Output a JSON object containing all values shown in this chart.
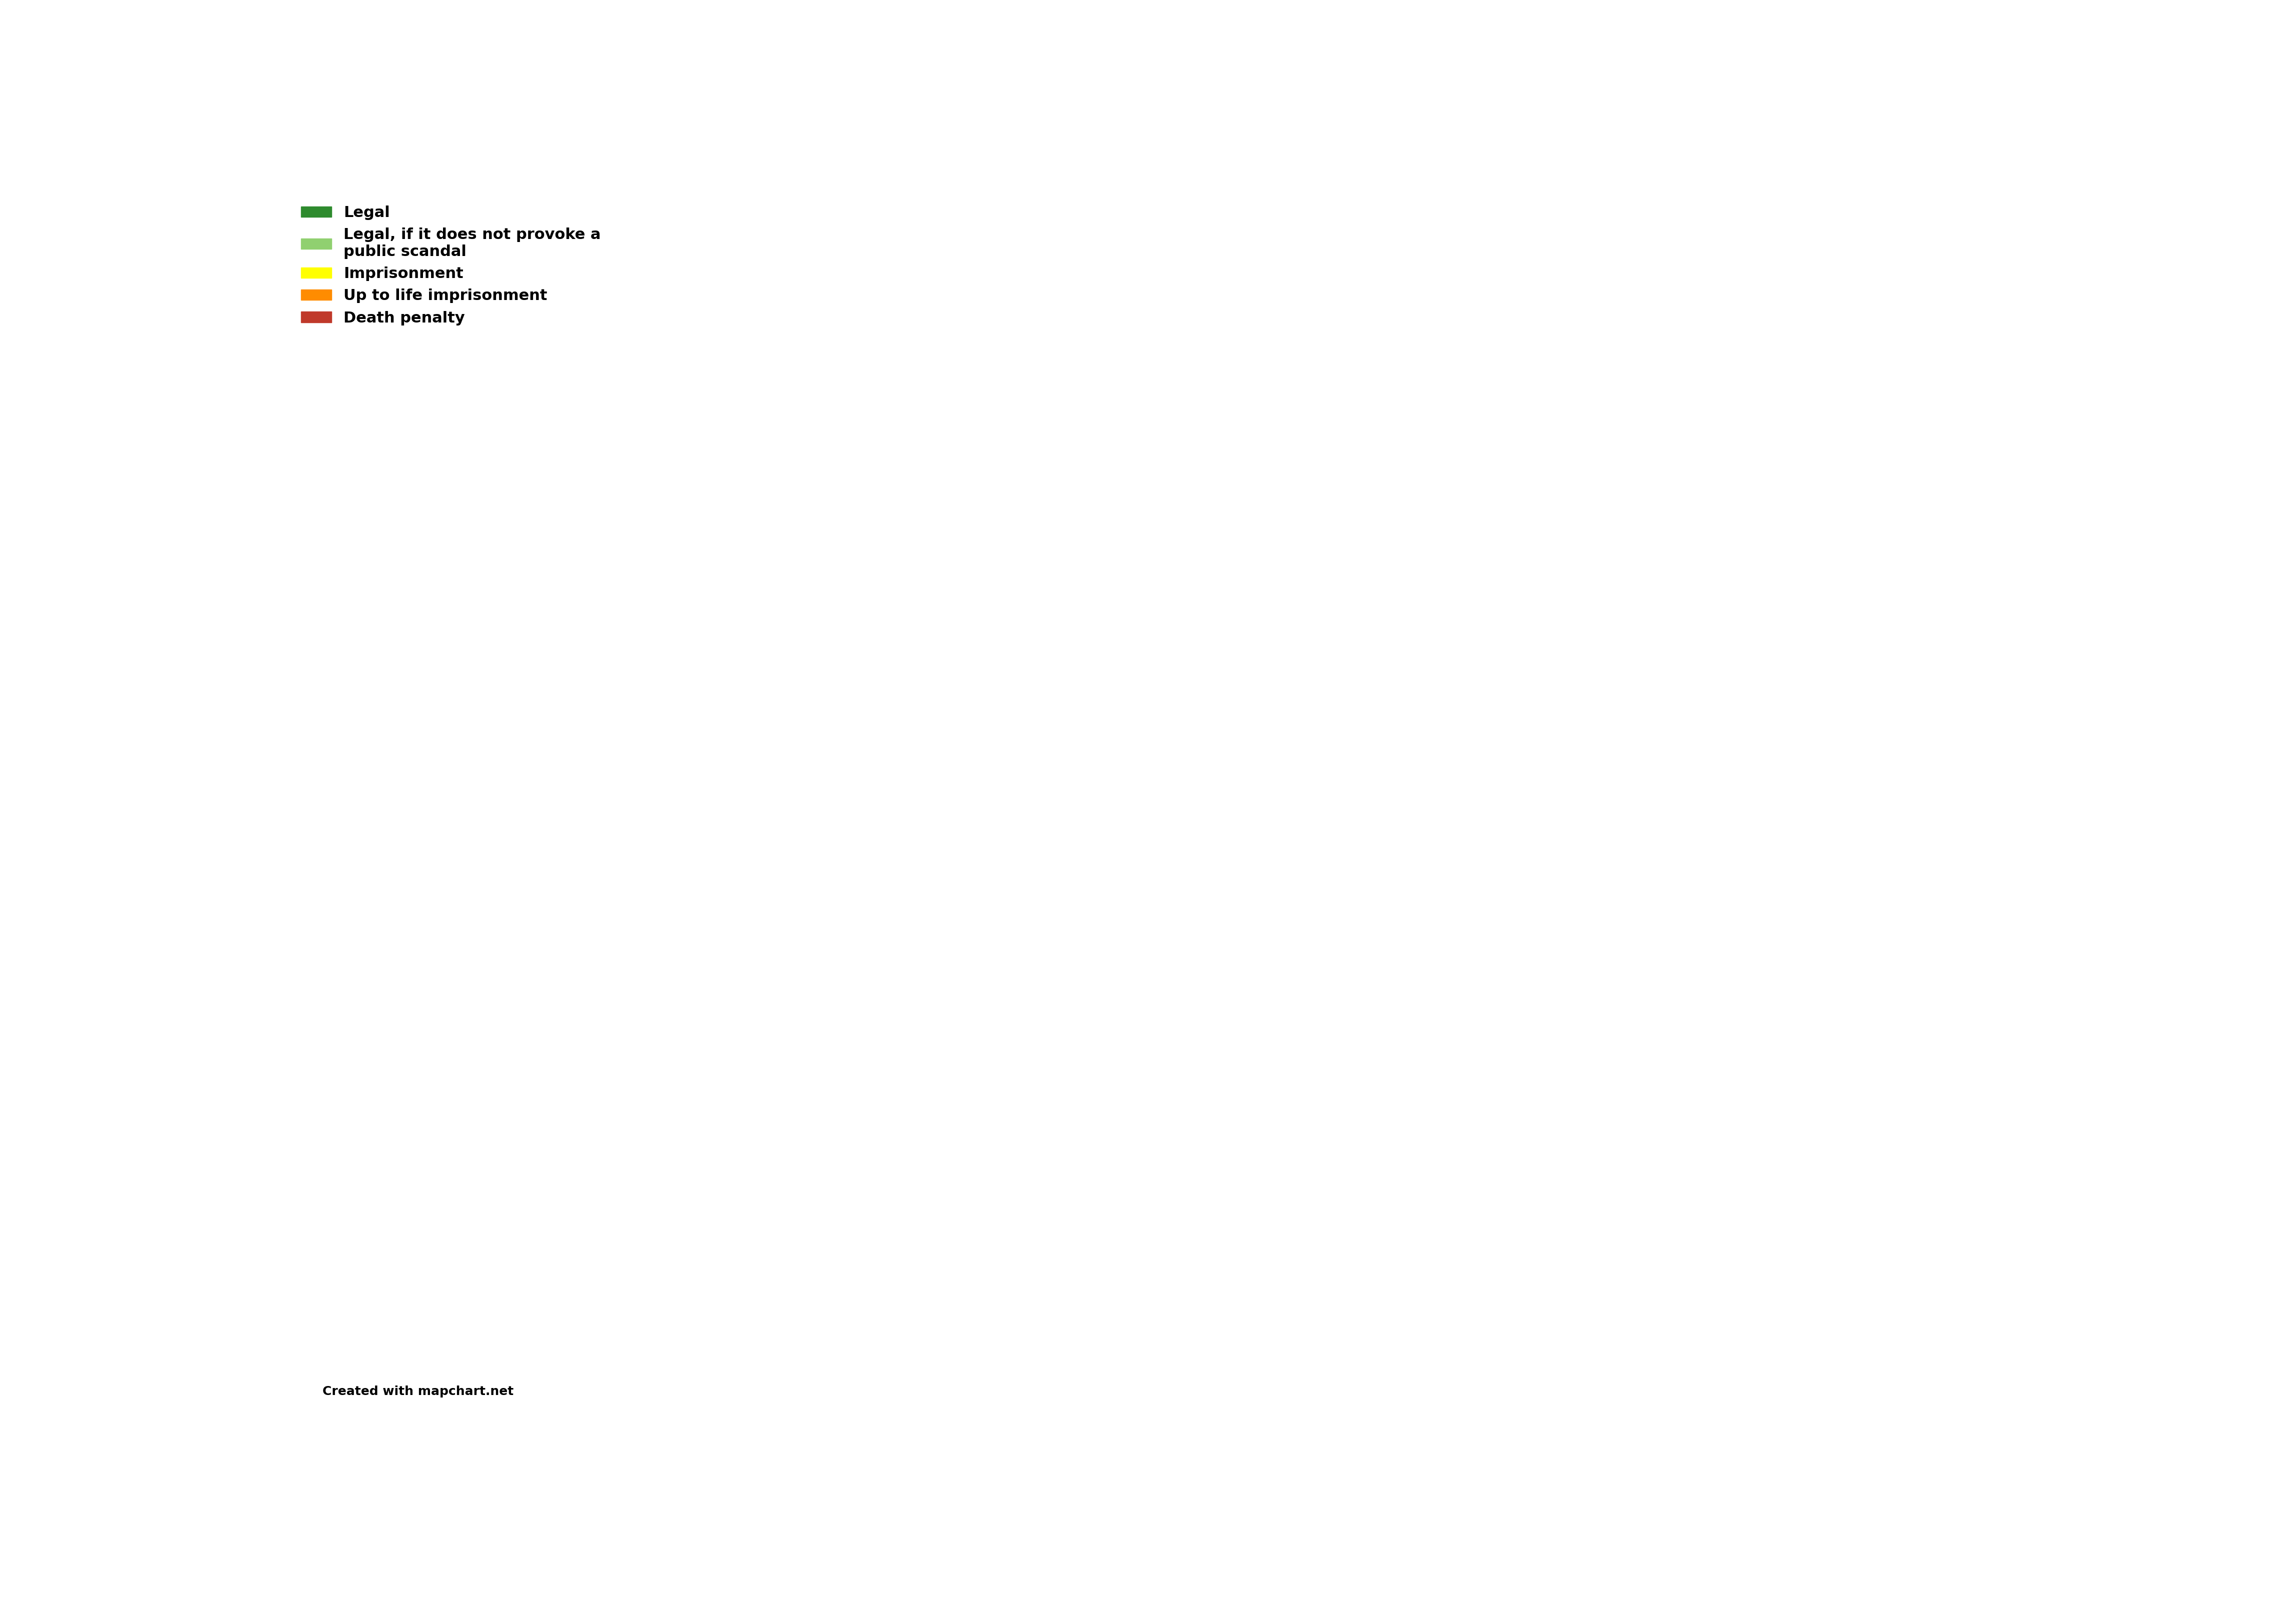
{
  "title": "",
  "legend_items": [
    {
      "label": "Legal",
      "color": "#2e8b2e"
    },
    {
      "label": "Legal, if it does not provoke a\npublic scandal",
      "color": "#90d070"
    },
    {
      "label": "Imprisonment",
      "color": "#ffff00"
    },
    {
      "label": "Up to life imprisonment",
      "color": "#ff8c00"
    },
    {
      "label": "Death penalty",
      "color": "#c0392b"
    }
  ],
  "watermark": "Created with mapchart.net",
  "background_color": "#ffffff",
  "ocean_color": "#ffffff",
  "no_data_color": "#c0c0c0",
  "border_color": "#ffffff",
  "country_colors": {
    "Russia": "#2e8b2e",
    "Belarus": "#2e8b2e",
    "Ukraine": "#2e8b2e",
    "Moldova": "#2e8b2e",
    "France": "#2e8b2e",
    "Spain": "#2e8b2e",
    "Portugal": "#2e8b2e",
    "Belgium": "#2e8b2e",
    "Netherlands": "#2e8b2e",
    "Luxembourg": "#2e8b2e",
    "Monaco": "#2e8b2e",
    "Andorra": "#2e8b2e",
    "Albania": "#2e8b2e",
    "North Macedonia": "#2e8b2e",
    "Kosovo": "#2e8b2e",
    "Turkey": "#2e8b2e",
    "Latvia": "#2e8b2e",
    "Lithuania": "#2e8b2e",
    "Estonia": "#2e8b2e",
    "Iceland": "#ffff00",
    "Norway": "#ffff00",
    "Sweden": "#ffff00",
    "Finland": "#ffff00",
    "Denmark": "#ffff00",
    "United Kingdom": "#ffff00",
    "Ireland": "#ff8c00",
    "Germany": "#ffff00",
    "Poland": "#ffff00",
    "Czech Republic": "#ffff00",
    "Czechia": "#ffff00",
    "Slovakia": "#ffff00",
    "Austria": "#ffff00",
    "Switzerland": "#ffff00",
    "Liechtenstein": "#ffff00",
    "Hungary": "#ffff00",
    "Romania": "#ffff00",
    "Serbia": "#ffff00",
    "Croatia": "#ffff00",
    "Bosnia and Herzegovina": "#ffff00",
    "Slovenia": "#ffff00",
    "Italy": "#90d070",
    "San Marino": "#90d070",
    "Vatican": "#90d070",
    "Greece": "#ffff00",
    "Bulgaria": "#ffff00",
    "Cyprus": "#ffff00",
    "Malta": "#ffff00",
    "Montenegro": "#ffff00",
    "Kazakhstan": "#2e8b2e",
    "Azerbaijan": "#ffff00",
    "Armenia": "#ffff00",
    "Georgia": "#ffff00",
    "Syria": "#c0392b",
    "Lebanon": "#c0392b",
    "Jordan": "#c0392b",
    "Israel": "#c0392b",
    "Iraq": "#c0392b",
    "Iran": "#c0392b",
    "Saudi Arabia": "#c0392b",
    "Kuwait": "#c0392b",
    "United Arab Emirates": "#c0392b",
    "Qatar": "#c0392b",
    "Bahrain": "#c0392b",
    "Oman": "#c0392b",
    "Yemen": "#c0392b",
    "Egypt": "#c0392b",
    "Libya": "#c0392b",
    "Tunisia": "#c0392b",
    "Algeria": "#c0392b",
    "Morocco": "#c0392b",
    "Mauritania": "#c0392b",
    "Afghanistan": "#c0392b",
    "Pakistan": "#c0392b"
  }
}
